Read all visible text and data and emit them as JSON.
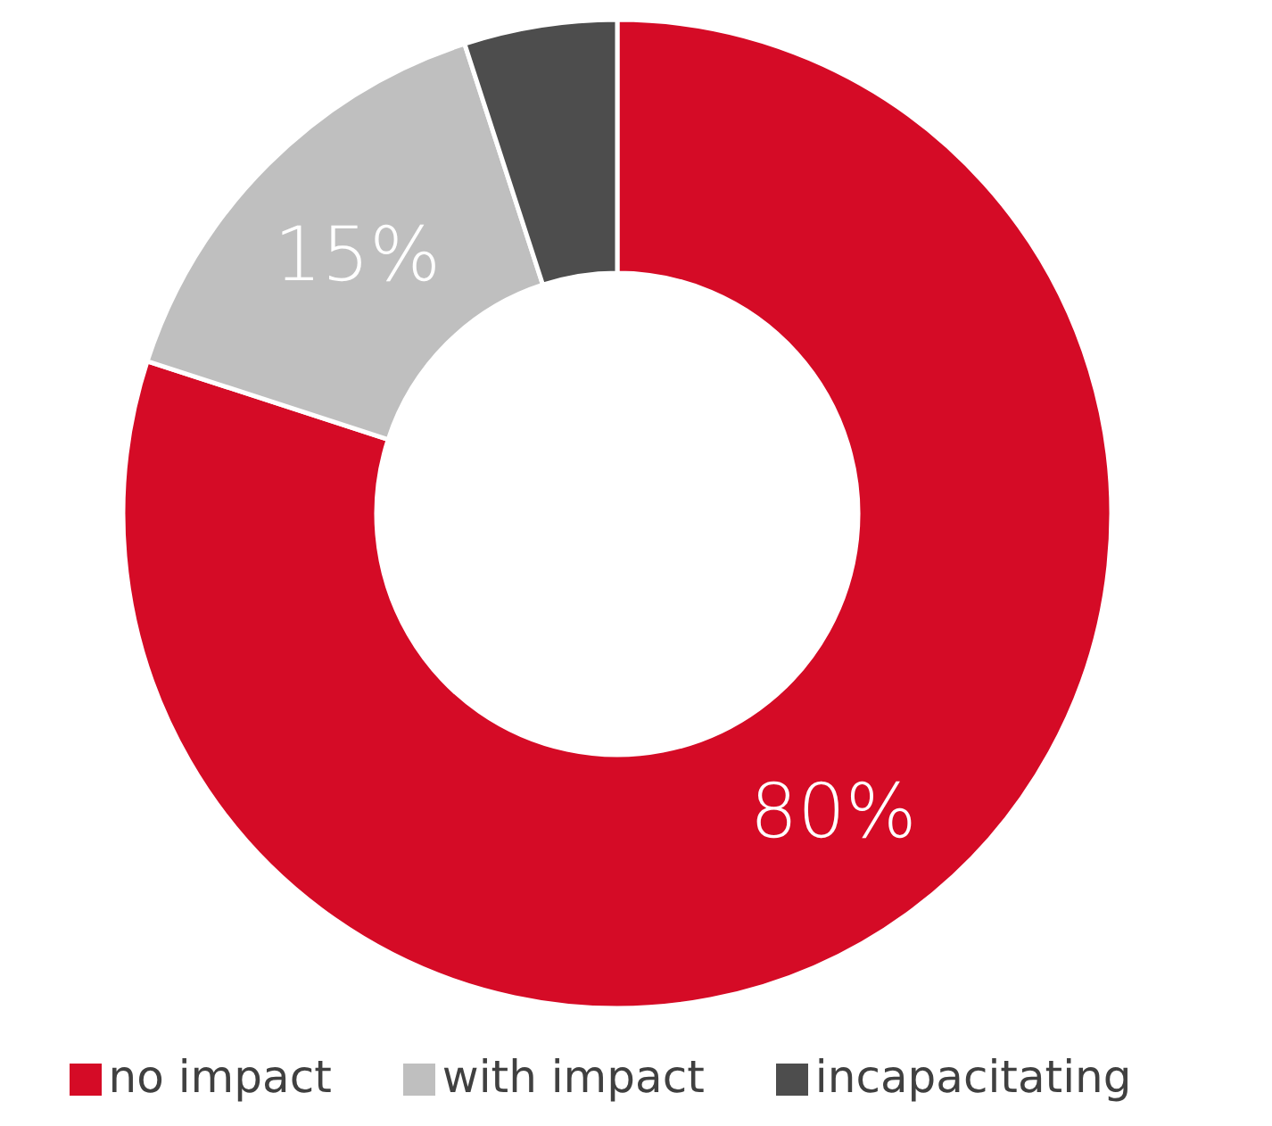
{
  "chart_data": {
    "type": "donut",
    "categories": [
      "no impact",
      "with impact",
      "incapacitating"
    ],
    "values": [
      80,
      15,
      5
    ],
    "colors": [
      "#d50b26",
      "#bfbfbf",
      "#4d4d4d"
    ],
    "value_labels": [
      "80%",
      "15%",
      null
    ],
    "legend": "bottom"
  }
}
